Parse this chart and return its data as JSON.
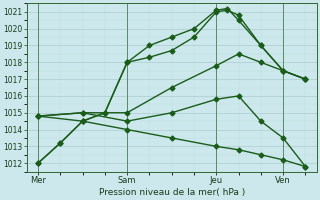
{
  "xlabel": "Pression niveau de la mer( hPa )",
  "bg_color": "#cce8ec",
  "grid_major_color": "#aacccc",
  "grid_minor_color": "#bbdddd",
  "line_color": "#1a5c1a",
  "ylim": [
    1011.5,
    1021.5
  ],
  "yticks": [
    1012,
    1013,
    1014,
    1015,
    1016,
    1017,
    1018,
    1019,
    1020,
    1021
  ],
  "ytick_fontsize": 5.5,
  "xtick_labels": [
    "Mer",
    "Sam",
    "Jeu",
    "Ven"
  ],
  "xtick_positions": [
    0,
    4,
    8,
    11
  ],
  "xlim": [
    -0.5,
    12.5
  ],
  "vline_positions": [
    0,
    4,
    8,
    11
  ],
  "lines": [
    {
      "x": [
        0,
        1,
        2,
        3,
        4,
        5,
        6,
        7,
        8,
        8.5,
        9,
        10,
        11,
        12
      ],
      "y": [
        1012.0,
        1013.2,
        1014.5,
        1015.0,
        1018.0,
        1019.0,
        1019.5,
        1020.0,
        1021.1,
        1021.2,
        1020.5,
        1019.0,
        1017.5,
        1017.0
      ]
    },
    {
      "x": [
        0,
        1,
        2,
        3,
        4,
        5,
        6,
        7,
        8,
        8.5,
        9,
        10,
        11,
        12
      ],
      "y": [
        1012.0,
        1013.2,
        1014.5,
        1015.0,
        1018.0,
        1018.3,
        1018.7,
        1019.5,
        1021.0,
        1021.1,
        1020.8,
        1019.0,
        1017.5,
        1017.0
      ]
    },
    {
      "x": [
        0,
        2,
        4,
        6,
        8,
        9,
        10,
        11,
        12
      ],
      "y": [
        1014.8,
        1015.0,
        1015.0,
        1016.5,
        1017.8,
        1018.5,
        1018.0,
        1017.5,
        1017.0
      ]
    },
    {
      "x": [
        0,
        2,
        4,
        6,
        8,
        9,
        10,
        11,
        12
      ],
      "y": [
        1014.8,
        1015.0,
        1014.5,
        1015.0,
        1015.8,
        1016.0,
        1014.5,
        1013.5,
        1011.8
      ]
    },
    {
      "x": [
        0,
        2,
        4,
        6,
        8,
        9,
        10,
        11,
        12
      ],
      "y": [
        1014.8,
        1014.5,
        1014.0,
        1013.5,
        1013.0,
        1012.8,
        1012.5,
        1012.2,
        1011.8
      ]
    }
  ],
  "marker": "D",
  "marker_size": 2.5,
  "line_width": 1.0
}
